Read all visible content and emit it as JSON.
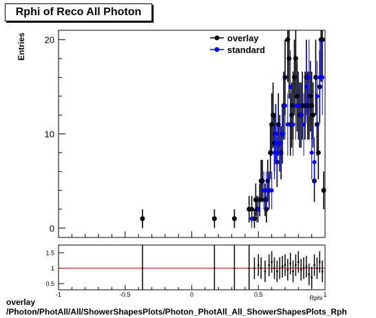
{
  "title": "Rphi of Reco All Photon",
  "footer": {
    "line1": "overlay",
    "line2": "/Photon/PhotAll/All/ShowerShapesPlots/Photon_PhotAll_All_ShowerShapesPlots_Rph"
  },
  "colors": {
    "overlay": "#000000",
    "standard": "#0000ff",
    "ratio_line": "#cc0000"
  },
  "chart_data": [
    {
      "type": "scatter",
      "title": "Rphi of Reco All Photon",
      "xlabel": "Rphi",
      "ylabel": "Entries",
      "xlim": [
        -1,
        1
      ],
      "ylim": [
        -1,
        21
      ],
      "y_ticks": [
        0,
        10,
        20
      ],
      "legend": {
        "position": "top-right",
        "entries": [
          "overlay",
          "standard"
        ]
      },
      "series": [
        {
          "name": "overlay",
          "x": [
            -0.37,
            0.17,
            0.32,
            0.43,
            0.45,
            0.47,
            0.48,
            0.49,
            0.51,
            0.52,
            0.53,
            0.55,
            0.56,
            0.57,
            0.58,
            0.59,
            0.6,
            0.61,
            0.62,
            0.63,
            0.64,
            0.65,
            0.66,
            0.67,
            0.68,
            0.69,
            0.7,
            0.72,
            0.73,
            0.74,
            0.75,
            0.76,
            0.77,
            0.78,
            0.79,
            0.8,
            0.81,
            0.82,
            0.83,
            0.85,
            0.86,
            0.87,
            0.88,
            0.89,
            0.9,
            0.91,
            0.92,
            0.93,
            0.94,
            0.95,
            0.96,
            0.97,
            0.98,
            0.99
          ],
          "y": [
            1,
            1,
            1,
            2,
            2,
            1,
            3,
            2,
            3,
            5,
            5,
            3,
            2,
            5,
            4,
            8,
            11,
            12,
            9,
            10,
            7,
            11,
            9,
            8,
            10,
            13,
            16,
            20,
            18,
            11,
            12,
            13,
            16,
            18,
            14,
            13,
            12,
            12,
            13,
            13,
            16,
            13,
            13,
            14,
            13,
            12,
            5,
            16,
            11,
            8,
            15,
            20,
            20,
            4
          ]
        },
        {
          "name": "standard",
          "x": [
            0.45,
            0.5,
            0.54,
            0.56,
            0.58,
            0.6,
            0.62,
            0.63,
            0.64,
            0.66,
            0.68,
            0.7,
            0.72,
            0.74,
            0.76,
            0.78,
            0.8,
            0.82,
            0.84,
            0.86,
            0.88,
            0.9,
            0.92,
            0.94,
            0.96,
            0.98
          ],
          "y": [
            1,
            2,
            4,
            4,
            4,
            4,
            8,
            10,
            8,
            9,
            10,
            13,
            11,
            15,
            11,
            13,
            13,
            12,
            11,
            15,
            16,
            8,
            7,
            14,
            16,
            16
          ]
        }
      ]
    },
    {
      "type": "scatter",
      "title": "",
      "xlabel": "Rphi",
      "ylabel": "",
      "xlim": [
        -1,
        1
      ],
      "ylim": [
        0.3,
        1.75
      ],
      "y_ticks": [
        0.5,
        1,
        1.5
      ],
      "x_ticks": [
        -1,
        -0.5,
        0,
        0.5,
        1
      ],
      "reference_line": 1,
      "series": [
        {
          "name": "ratio",
          "x": [
            -0.37,
            0.17,
            0.32,
            0.43,
            0.47,
            0.5,
            0.52,
            0.55,
            0.58,
            0.6,
            0.62,
            0.64,
            0.66,
            0.68,
            0.7,
            0.72,
            0.74,
            0.76,
            0.78,
            0.8,
            0.82,
            0.84,
            0.86,
            0.88,
            0.9,
            0.92,
            0.94,
            0.96,
            0.98
          ],
          "y": [
            1,
            1,
            1,
            1,
            1,
            1.1,
            1,
            0.9,
            1.1,
            1.2,
            1,
            0.9,
            1,
            1.05,
            1.1,
            0.95,
            1.15,
            0.9,
            1.1,
            1.2,
            0.95,
            1.0,
            1.05,
            0.8,
            0.7,
            1.1,
            1.0,
            1.2,
            0.9
          ]
        }
      ]
    }
  ]
}
